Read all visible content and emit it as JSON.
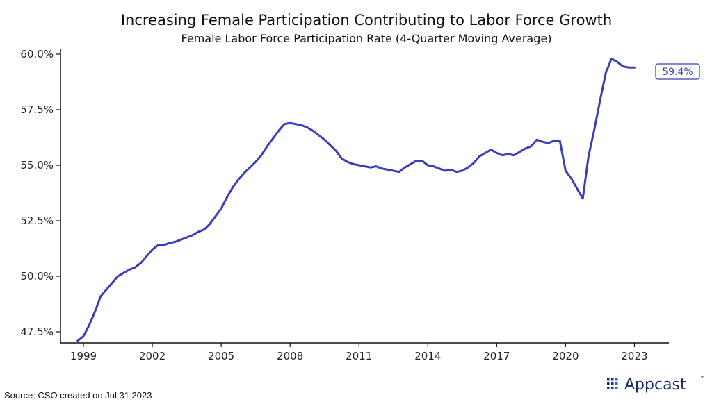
{
  "chart_data": {
    "type": "line",
    "title": "Increasing Female Participation Contributing to Labor Force Growth",
    "subtitle": "Female Labor Force Participation Rate (4-Quarter Moving Average)",
    "xlabel": "",
    "ylabel": "",
    "xlim": [
      1998,
      2024.5
    ],
    "ylim": [
      47.0,
      60.25
    ],
    "x_ticks": [
      1999,
      2002,
      2005,
      2008,
      2011,
      2014,
      2017,
      2020,
      2023
    ],
    "y_ticks": [
      47.5,
      50.0,
      52.5,
      55.0,
      57.5,
      60.0
    ],
    "y_tick_labels": [
      "47.5%",
      "50.0%",
      "52.5%",
      "55.0%",
      "57.5%",
      "60.0%"
    ],
    "grid": false,
    "line_color": "#3a3db8",
    "end_label": "59.4%",
    "series": [
      {
        "x": [
          1998.75,
          1999.0,
          1999.25,
          1999.5,
          1999.75,
          2000.0,
          2000.25,
          2000.5,
          2000.75,
          2001.0,
          2001.25,
          2001.5,
          2001.75,
          2002.0,
          2002.25,
          2002.5,
          2002.75,
          2003.0,
          2003.25,
          2003.5,
          2003.75,
          2004.0,
          2004.25,
          2004.5,
          2004.75,
          2005.0,
          2005.25,
          2005.5,
          2005.75,
          2006.0,
          2006.25,
          2006.5,
          2006.75,
          2007.0,
          2007.25,
          2007.5,
          2007.75,
          2008.0,
          2008.25,
          2008.5,
          2008.75,
          2009.0,
          2009.25,
          2009.5,
          2009.75,
          2010.0,
          2010.25,
          2010.5,
          2010.75,
          2011.0,
          2011.25,
          2011.5,
          2011.75,
          2012.0,
          2012.25,
          2012.5,
          2012.75,
          2013.0,
          2013.25,
          2013.5,
          2013.75,
          2014.0,
          2014.25,
          2014.5,
          2014.75,
          2015.0,
          2015.25,
          2015.5,
          2015.75,
          2016.0,
          2016.25,
          2016.5,
          2016.75,
          2017.0,
          2017.25,
          2017.5,
          2017.75,
          2018.0,
          2018.25,
          2018.5,
          2018.75,
          2019.0,
          2019.25,
          2019.5,
          2019.75,
          2020.0,
          2020.25,
          2020.5,
          2020.75,
          2021.0,
          2021.25,
          2021.5,
          2021.75,
          2022.0,
          2022.25,
          2022.5,
          2022.75,
          2023.0
        ],
        "y": [
          47.1,
          47.3,
          47.8,
          48.4,
          49.1,
          49.4,
          49.7,
          50.0,
          50.15,
          50.3,
          50.4,
          50.6,
          50.9,
          51.2,
          51.4,
          51.4,
          51.5,
          51.55,
          51.65,
          51.75,
          51.85,
          52.0,
          52.1,
          52.35,
          52.7,
          53.05,
          53.55,
          54.0,
          54.35,
          54.65,
          54.9,
          55.15,
          55.45,
          55.85,
          56.2,
          56.55,
          56.85,
          56.9,
          56.85,
          56.8,
          56.7,
          56.55,
          56.35,
          56.15,
          55.9,
          55.65,
          55.3,
          55.15,
          55.05,
          55.0,
          54.95,
          54.9,
          54.95,
          54.85,
          54.8,
          54.75,
          54.7,
          54.9,
          55.05,
          55.2,
          55.2,
          55.0,
          54.95,
          54.85,
          54.75,
          54.8,
          54.7,
          54.75,
          54.9,
          55.1,
          55.4,
          55.55,
          55.7,
          55.55,
          55.45,
          55.5,
          55.45,
          55.6,
          55.75,
          55.85,
          56.15,
          56.05,
          56.0,
          56.1,
          56.1,
          54.75,
          54.4,
          53.95,
          53.5,
          55.4,
          56.6,
          57.9,
          59.15,
          59.8,
          59.65,
          59.45,
          59.4,
          59.4
        ]
      }
    ]
  },
  "footer": {
    "source": "Source: CSO created on Jul 31 2023",
    "brand": "Appcast",
    "brand_mark": "™"
  }
}
